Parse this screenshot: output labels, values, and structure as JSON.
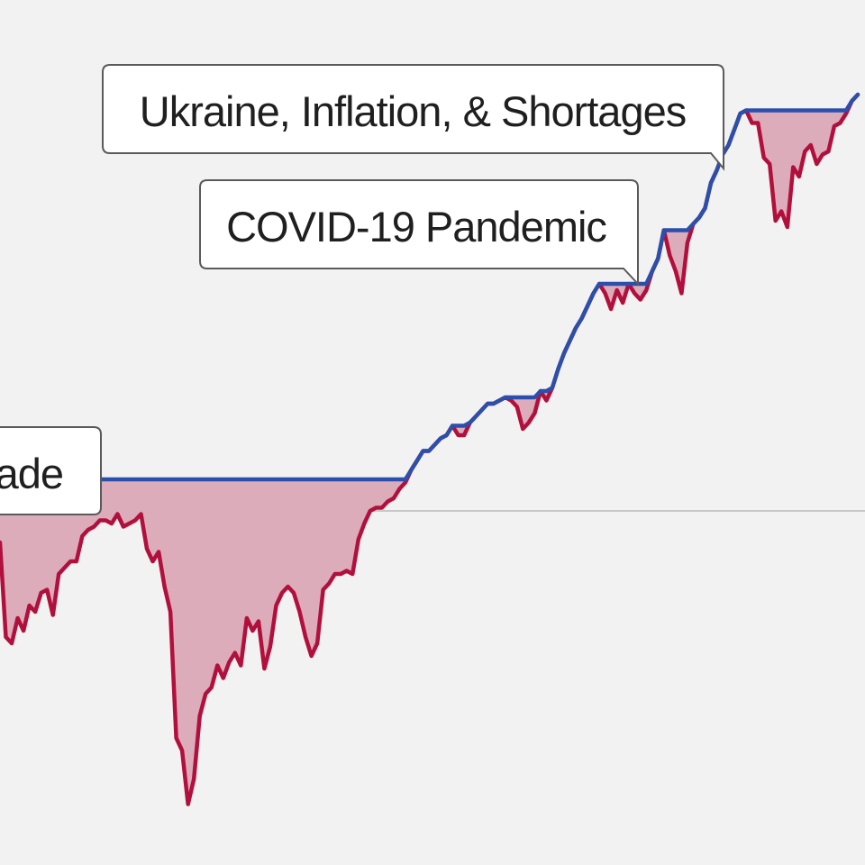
{
  "colors": {
    "background": "#f2f2f2",
    "price_line": "#b2103c",
    "drawdown_fill": "#ddacba",
    "peak_line": "#2b4faa",
    "reference_line": "#c8c8c8",
    "callout_border": "#5a5a5a",
    "callout_fill": "#ffffff"
  },
  "callouts": [
    {
      "id": "ukraine",
      "text": "Ukraine, Inflation, & Shortages"
    },
    {
      "id": "covid",
      "text": "COVID-19 Pandemic"
    },
    {
      "id": "decade",
      "text": "ade"
    }
  ],
  "chart_data": {
    "type": "line",
    "title": "",
    "xlabel": "",
    "ylabel": "",
    "grid": false,
    "reference_line_value": 0,
    "y_units": "relative",
    "series": [
      {
        "values": [
          -1.0,
          -4.0,
          -4.2,
          -3.4,
          -3.8,
          -3.0,
          -3.2,
          -2.6,
          -2.5,
          -3.3,
          -2.0,
          -1.8,
          -1.6,
          -1.6,
          -0.8,
          -0.6,
          -0.5,
          -0.3,
          -0.3,
          -0.4,
          -0.1,
          -0.5,
          -0.4,
          -0.3,
          -0.1,
          -1.2,
          -1.6,
          -1.3,
          -2.4,
          -3.2,
          -7.2,
          -7.6,
          -9.3,
          -8.5,
          -6.5,
          -5.8,
          -5.6,
          -4.9,
          -5.3,
          -4.8,
          -4.5,
          -4.9,
          -3.4,
          -3.8,
          -3.5,
          -5.0,
          -4.3,
          -3.0,
          -2.6,
          -2.4,
          -2.6,
          -3.2,
          -4.0,
          -4.6,
          -4.2,
          -2.5,
          -2.3,
          -2.0,
          -2.0,
          -1.9,
          -2.0,
          -0.9,
          -0.4,
          0.0,
          0.1,
          0.1,
          0.3,
          0.4,
          0.7,
          0.9,
          1.3,
          1.6,
          1.9,
          1.9,
          2.1,
          2.3,
          2.4,
          2.7,
          2.4,
          2.4,
          2.8,
          3.0,
          3.2,
          3.4,
          3.4,
          3.5,
          3.6,
          3.5,
          3.3,
          2.6,
          2.8,
          3.1,
          3.8,
          3.5,
          3.9,
          4.5,
          5.0,
          5.4,
          5.8,
          6.1,
          6.5,
          6.9,
          7.2,
          6.9,
          6.4,
          7.0,
          6.6,
          7.2,
          6.9,
          6.7,
          7.0,
          7.6,
          8.0,
          8.9,
          8.1,
          7.6,
          6.9,
          8.5,
          9.1,
          9.3,
          9.6,
          10.4,
          10.8,
          11.3,
          11.6,
          12.1,
          12.6,
          12.7,
          12.3,
          12.3,
          11.2,
          11.0,
          9.2,
          9.5,
          9.0,
          10.9,
          10.6,
          11.4,
          11.6,
          11.0,
          11.3,
          11.4,
          12.2,
          12.3,
          12.6,
          13.0,
          13.2
        ]
      }
    ]
  }
}
